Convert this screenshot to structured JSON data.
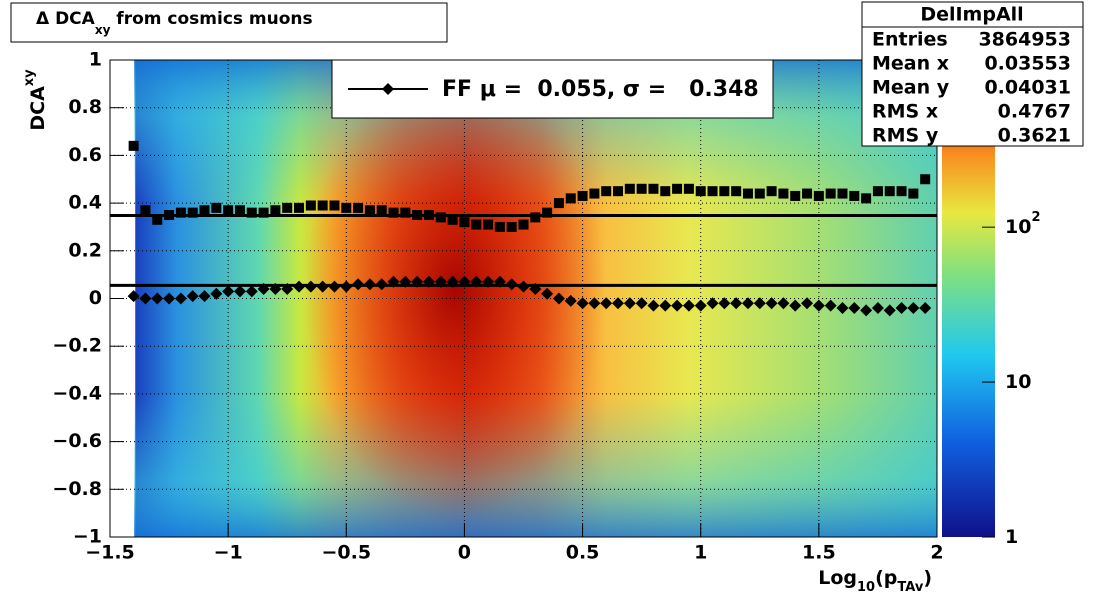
{
  "chart_data": {
    "type": "profile2d",
    "title": {
      "prefix": "Δ DCA",
      "sub": "xy",
      "suffix": " from cosmics muons"
    },
    "y_label": {
      "text": "DCA",
      "sub": "xy"
    },
    "x_label": {
      "text": "Log",
      "sub": "10",
      "mid": "(p",
      "sub2": "TAv",
      "end": ")"
    },
    "xlim": [
      -1.5,
      2
    ],
    "ylim": [
      -1,
      1
    ],
    "xticks": [
      {
        "value": -1.5,
        "label": "−1.5"
      },
      {
        "value": -1,
        "label": "−1"
      },
      {
        "value": -0.5,
        "label": "−0.5"
      },
      0,
      0.5,
      1,
      1.5,
      2
    ],
    "yticks": [
      {
        "value": -1,
        "label": "−1"
      },
      {
        "value": -0.8,
        "label": "−0.8"
      },
      {
        "value": -0.6,
        "label": "−0.6"
      },
      {
        "value": -0.4,
        "label": "−0.4"
      },
      {
        "value": -0.2,
        "label": "−0.2"
      },
      0,
      0.2,
      0.4,
      0.6,
      0.8,
      1
    ],
    "zlim": [
      1,
      1200
    ],
    "zlog": true,
    "zticks": [
      1,
      10,
      {
        "value": 100,
        "label": "10",
        "superscript": "2"
      }
    ],
    "grid": true,
    "x": [
      -1.4,
      -1.35,
      -1.3,
      -1.25,
      -1.2,
      -1.15,
      -1.1,
      -1.05,
      -1,
      -0.95,
      -0.9,
      -0.85,
      -0.8,
      -0.75,
      -0.7,
      -0.65,
      -0.6,
      -0.55,
      -0.5,
      -0.45,
      -0.4,
      -0.35,
      -0.3,
      -0.25,
      -0.2,
      -0.15,
      -0.1,
      -0.05,
      0,
      0.05,
      0.1,
      0.15,
      0.2,
      0.25,
      0.3,
      0.35,
      0.4,
      0.45,
      0.5,
      0.55,
      0.6,
      0.65,
      0.7,
      0.75,
      0.8,
      0.85,
      0.9,
      0.95,
      1,
      1.05,
      1.1,
      1.15,
      1.2,
      1.25,
      1.3,
      1.35,
      1.4,
      1.45,
      1.5,
      1.55,
      1.6,
      1.65,
      1.7,
      1.75,
      1.8,
      1.85,
      1.9,
      1.95
    ],
    "series": [
      {
        "marker": "diamond",
        "color": "#000000",
        "values": [
          0.01,
          0.0,
          0.0,
          0.0,
          0.0,
          0.01,
          0.01,
          0.02,
          0.03,
          0.03,
          0.03,
          0.04,
          0.04,
          0.04,
          0.05,
          0.05,
          0.05,
          0.05,
          0.05,
          0.06,
          0.06,
          0.06,
          0.07,
          0.07,
          0.07,
          0.07,
          0.07,
          0.07,
          0.07,
          0.07,
          0.07,
          0.07,
          0.06,
          0.05,
          0.04,
          0.02,
          0.0,
          -0.01,
          -0.02,
          -0.02,
          -0.02,
          -0.02,
          -0.02,
          -0.02,
          -0.03,
          -0.03,
          -0.03,
          -0.03,
          -0.03,
          -0.02,
          -0.02,
          -0.02,
          -0.02,
          -0.02,
          -0.02,
          -0.02,
          -0.03,
          -0.02,
          -0.03,
          -0.03,
          -0.04,
          -0.04,
          -0.05,
          -0.04,
          -0.05,
          -0.04,
          -0.04,
          -0.04
        ]
      },
      {
        "marker": "square",
        "color": "#000000",
        "values": [
          0.64,
          0.37,
          0.33,
          0.35,
          0.36,
          0.36,
          0.37,
          0.38,
          0.37,
          0.37,
          0.36,
          0.36,
          0.37,
          0.38,
          0.38,
          0.39,
          0.39,
          0.39,
          0.38,
          0.38,
          0.37,
          0.37,
          0.36,
          0.36,
          0.35,
          0.35,
          0.34,
          0.33,
          0.32,
          0.31,
          0.31,
          0.3,
          0.3,
          0.31,
          0.34,
          0.36,
          0.4,
          0.42,
          0.43,
          0.44,
          0.45,
          0.45,
          0.46,
          0.46,
          0.46,
          0.45,
          0.46,
          0.46,
          0.45,
          0.45,
          0.45,
          0.45,
          0.44,
          0.44,
          0.45,
          0.44,
          0.43,
          0.44,
          0.43,
          0.44,
          0.44,
          0.43,
          0.42,
          0.45,
          0.45,
          0.45,
          0.44,
          0.5
        ]
      }
    ],
    "fit_lines": [
      0.055,
      0.348
    ],
    "legend": {
      "label": "FF μ =  0.055, σ =   0.348"
    },
    "stats": {
      "title": "DelImpAll",
      "rows": [
        [
          "Entries",
          "3864953"
        ],
        [
          "Mean x",
          "0.03553"
        ],
        [
          "Mean y",
          "0.04031"
        ],
        [
          "RMS x",
          "0.4767"
        ],
        [
          "RMS y",
          "0.3621"
        ]
      ]
    }
  }
}
